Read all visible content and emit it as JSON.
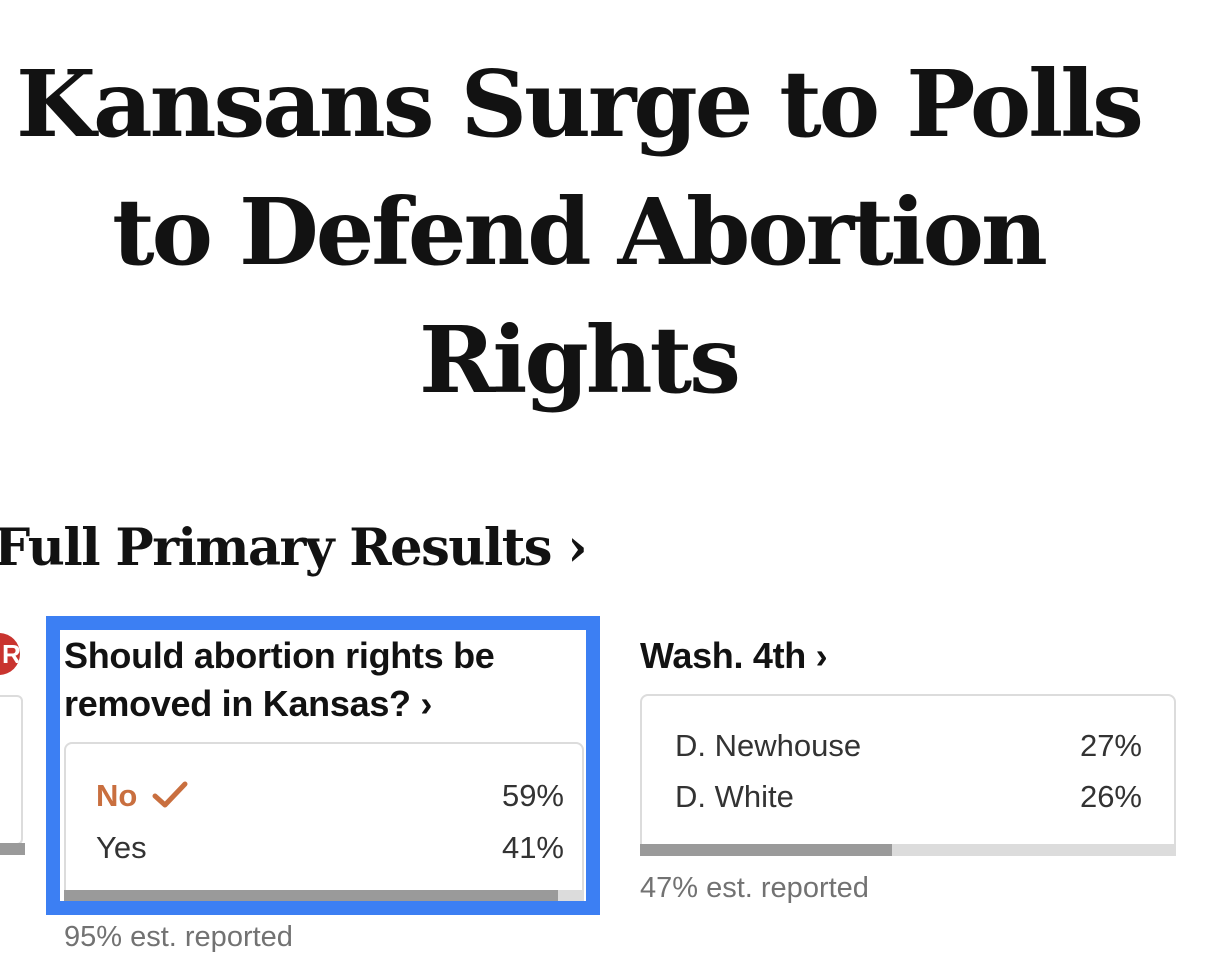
{
  "headline": "Kansans Surge to Polls to Defend Abortion Rights",
  "section_title": "Full Primary Results ›",
  "prev_card": {
    "badge_letter": "R"
  },
  "races": [
    {
      "title": "Should abortion rights be removed in Kansas? ›",
      "results": [
        {
          "name": "No",
          "pct": "59%",
          "winner": true,
          "winner_icon": "checkmark-icon"
        },
        {
          "name": "Yes",
          "pct": "41%",
          "winner": false
        }
      ],
      "reported_fraction": 0.95,
      "reported_label": "95% est. reported"
    },
    {
      "title": "Wash. 4th ›",
      "results": [
        {
          "name": "D. Newhouse",
          "pct": "27%"
        },
        {
          "name": "D. White",
          "pct": "26%"
        }
      ],
      "reported_fraction": 0.47,
      "reported_label": "47% est. reported"
    }
  ],
  "colors": {
    "headline_text": "#121212",
    "highlight_border": "#3c7ff3",
    "winner_text": "#c96f3f",
    "republican_badge": "#c9342f",
    "progress_fill": "#9a9a9a",
    "progress_track": "#dcdcdc",
    "secondary_text": "#727272"
  }
}
